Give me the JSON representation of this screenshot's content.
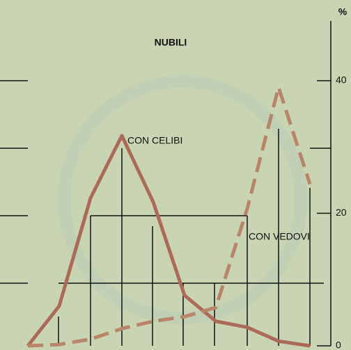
{
  "chart_data": {
    "type": "line",
    "title": "NUBILI",
    "y_label": "%",
    "categories": [
      null,
      null,
      null,
      null,
      null,
      null,
      null,
      null,
      null,
      null
    ],
    "series": [
      {
        "name": "CON CELIBI",
        "color": "#ad6a58",
        "dashed": false,
        "values": [
          0,
          6,
          22.3,
          31.7,
          21.7,
          7.6,
          3.7,
          2.8,
          0.7,
          0
        ]
      },
      {
        "name": "CON VEDOVI",
        "color": "#b98569",
        "dashed": true,
        "values": [
          0,
          0.2,
          1,
          2.6,
          3.7,
          4.4,
          5.8,
          20.7,
          39,
          24.4
        ]
      }
    ],
    "ylim": [
      0,
      40
    ],
    "yticks": [
      0,
      20,
      40
    ],
    "grid": true
  }
}
